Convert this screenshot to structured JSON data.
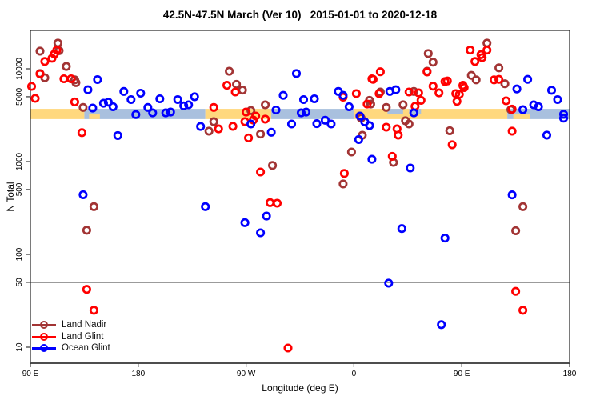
{
  "title": "42.5N-47.5N March (Ver 10)   2015-01-01 to 2020-12-18",
  "chart_data": {
    "type": "scatter",
    "title": "42.5N-47.5N March (Ver 10)   2015-01-01 to 2020-12-18",
    "xlabel": "Longitude (deg E)",
    "ylabel": "N Total",
    "x_axis": {
      "note": "t = degrees eastward from left edge; axis starts at 90E and wraps around the globe 450 degrees",
      "range_t": [
        0,
        450
      ],
      "ticks": [
        {
          "t": 0,
          "label": "90 E"
        },
        {
          "t": 90,
          "label": "180"
        },
        {
          "t": 180,
          "label": "90 W"
        },
        {
          "t": 270,
          "label": "0"
        },
        {
          "t": 360,
          "label": "90 E"
        },
        {
          "t": 450,
          "label": "180"
        }
      ]
    },
    "y_axis": {
      "scale": "log10",
      "ticks": [
        10,
        50,
        100,
        500,
        1000,
        5000,
        10000
      ],
      "range": [
        7,
        26000
      ]
    },
    "grid": false,
    "legend_position": "bottom-left",
    "reference_line": {
      "n": 50,
      "color": "#7a7a7a"
    },
    "surface_band": {
      "n_top": 3700,
      "n_bottom": 2870,
      "land_color": "#FFD87E",
      "ocean_color": "#A9C0DE",
      "segments": [
        {
          "from": 0,
          "to": 45,
          "surface": "land"
        },
        {
          "from": 45,
          "to": 146,
          "surface": "ocean"
        },
        {
          "from": 146,
          "to": 201,
          "surface": "land"
        },
        {
          "from": 201,
          "to": 270,
          "surface": "ocean"
        },
        {
          "from": 270,
          "to": 398,
          "surface": "land"
        },
        {
          "from": 398,
          "to": 450,
          "surface": "ocean"
        }
      ],
      "patches": [
        {
          "from": 49,
          "to": 58,
          "surface": "land",
          "half": "bottom"
        },
        {
          "from": 298,
          "to": 311,
          "surface": "ocean",
          "half": "top"
        },
        {
          "from": 316,
          "to": 326,
          "surface": "ocean",
          "half": "top"
        },
        {
          "from": 403,
          "to": 417,
          "surface": "land",
          "half": "bottom"
        }
      ]
    },
    "series": [
      {
        "name": "Land Nadir",
        "color": "#A23434",
        "points": [
          [
            8,
            15500
          ],
          [
            23,
            18900
          ],
          [
            24,
            15700
          ],
          [
            8,
            8900
          ],
          [
            12,
            8000
          ],
          [
            30,
            10600
          ],
          [
            37,
            7600
          ],
          [
            38,
            7100
          ],
          [
            44,
            3830
          ],
          [
            166,
            9400
          ],
          [
            172,
            6800
          ],
          [
            177,
            5900
          ],
          [
            184,
            3550
          ],
          [
            196,
            4090
          ],
          [
            153,
            2690
          ],
          [
            149,
            2130
          ],
          [
            192,
            1980
          ],
          [
            202,
            910
          ],
          [
            53,
            327
          ],
          [
            47,
            182
          ],
          [
            332,
            14600
          ],
          [
            336,
            11800
          ],
          [
            331,
            9400
          ],
          [
            381,
            18900
          ],
          [
            391,
            10250
          ],
          [
            368,
            8500
          ],
          [
            372,
            7600
          ],
          [
            396,
            6900
          ],
          [
            401,
            3630
          ],
          [
            292,
            5620
          ],
          [
            283,
            4570
          ],
          [
            284,
            4170
          ],
          [
            297,
            3830
          ],
          [
            320,
            5700
          ],
          [
            311,
            4100
          ],
          [
            313,
            2760
          ],
          [
            316,
            2540
          ],
          [
            277,
            1920
          ],
          [
            276,
            2940
          ],
          [
            268,
            1270
          ],
          [
            303,
            980
          ],
          [
            261,
            575
          ],
          [
            350,
            2150
          ],
          [
            411,
            327
          ],
          [
            405,
            180
          ]
        ]
      },
      {
        "name": "Land Glint",
        "color": "#FF0000",
        "points": [
          [
            12,
            12000
          ],
          [
            18,
            13000
          ],
          [
            20,
            14400
          ],
          [
            22,
            15900
          ],
          [
            8,
            8800
          ],
          [
            1,
            6460
          ],
          [
            4,
            4800
          ],
          [
            28,
            7800
          ],
          [
            34,
            7800
          ],
          [
            37,
            4400
          ],
          [
            43,
            2050
          ],
          [
            47,
            42
          ],
          [
            53,
            25
          ],
          [
            164,
            6640
          ],
          [
            171,
            5620
          ],
          [
            153,
            3830
          ],
          [
            180,
            3420
          ],
          [
            188,
            3100
          ],
          [
            157,
            2250
          ],
          [
            169,
            2400
          ],
          [
            179,
            2700
          ],
          [
            186,
            2800
          ],
          [
            196,
            2870
          ],
          [
            182,
            1800
          ],
          [
            192,
            773
          ],
          [
            200,
            361
          ],
          [
            206,
            356
          ],
          [
            215,
            9.8
          ],
          [
            272,
            5400
          ],
          [
            261,
            4950
          ],
          [
            281,
            4170
          ],
          [
            292,
            9300
          ],
          [
            286,
            7700
          ],
          [
            285,
            7800
          ],
          [
            291,
            5400
          ],
          [
            331,
            9250
          ],
          [
            336,
            6500
          ],
          [
            346,
            7300
          ],
          [
            341,
            5500
          ],
          [
            355,
            5400
          ],
          [
            361,
            6640
          ],
          [
            316,
            5620
          ],
          [
            324,
            5500
          ],
          [
            326,
            4570
          ],
          [
            321,
            3940
          ],
          [
            297,
            2350
          ],
          [
            306,
            2250
          ],
          [
            307,
            1930
          ],
          [
            262,
            746
          ],
          [
            302,
            1140
          ],
          [
            352,
            1520
          ],
          [
            367,
            15900
          ],
          [
            381,
            15900
          ],
          [
            376,
            14200
          ],
          [
            371,
            12000
          ],
          [
            377,
            13200
          ],
          [
            387,
            7600
          ],
          [
            391,
            7700
          ],
          [
            348,
            7400
          ],
          [
            361,
            6560
          ],
          [
            356,
            4460
          ],
          [
            362,
            6270
          ],
          [
            358,
            5300
          ],
          [
            397,
            4520
          ],
          [
            402,
            3680
          ],
          [
            402,
            2130
          ],
          [
            405,
            40
          ],
          [
            411,
            25
          ]
        ]
      },
      {
        "name": "Ocean Glint",
        "color": "#0000FF",
        "points": [
          [
            56,
            7650
          ],
          [
            48,
            5950
          ],
          [
            52,
            3770
          ],
          [
            61,
            4250
          ],
          [
            65,
            4370
          ],
          [
            69,
            3900
          ],
          [
            73,
            1910
          ],
          [
            78,
            5700
          ],
          [
            84,
            4660
          ],
          [
            92,
            5460
          ],
          [
            88,
            3210
          ],
          [
            98,
            3830
          ],
          [
            102,
            3350
          ],
          [
            108,
            4750
          ],
          [
            113,
            3350
          ],
          [
            117,
            3420
          ],
          [
            123,
            4660
          ],
          [
            128,
            3990
          ],
          [
            132,
            4090
          ],
          [
            137,
            5000
          ],
          [
            44,
            440
          ],
          [
            146,
            327
          ],
          [
            179,
            220
          ],
          [
            197,
            259
          ],
          [
            192,
            171
          ],
          [
            142,
            2390
          ],
          [
            184,
            2540
          ],
          [
            201,
            2070
          ],
          [
            218,
            2540
          ],
          [
            222,
            8900
          ],
          [
            211,
            5170
          ],
          [
            205,
            3600
          ],
          [
            228,
            4660
          ],
          [
            226,
            3350
          ],
          [
            230,
            3420
          ],
          [
            237,
            4750
          ],
          [
            239,
            2560
          ],
          [
            246,
            2790
          ],
          [
            251,
            2540
          ],
          [
            257,
            5700
          ],
          [
            261,
            5170
          ],
          [
            266,
            3900
          ],
          [
            279,
            2680
          ],
          [
            283,
            2450
          ],
          [
            274,
            1730
          ],
          [
            285,
            1060
          ],
          [
            317,
            853
          ],
          [
            300,
            5700
          ],
          [
            305,
            5950
          ],
          [
            320,
            3350
          ],
          [
            275,
            3100
          ],
          [
            310,
            190
          ],
          [
            346,
            150
          ],
          [
            299,
            49
          ],
          [
            343,
            17.5
          ],
          [
            402,
            438
          ],
          [
            415,
            7700
          ],
          [
            431,
            1930
          ],
          [
            406,
            6060
          ],
          [
            435,
            5870
          ],
          [
            420,
            4090
          ],
          [
            424,
            3900
          ],
          [
            440,
            4660
          ],
          [
            445,
            3240
          ],
          [
            411,
            3630
          ],
          [
            445,
            2940
          ]
        ]
      }
    ]
  }
}
